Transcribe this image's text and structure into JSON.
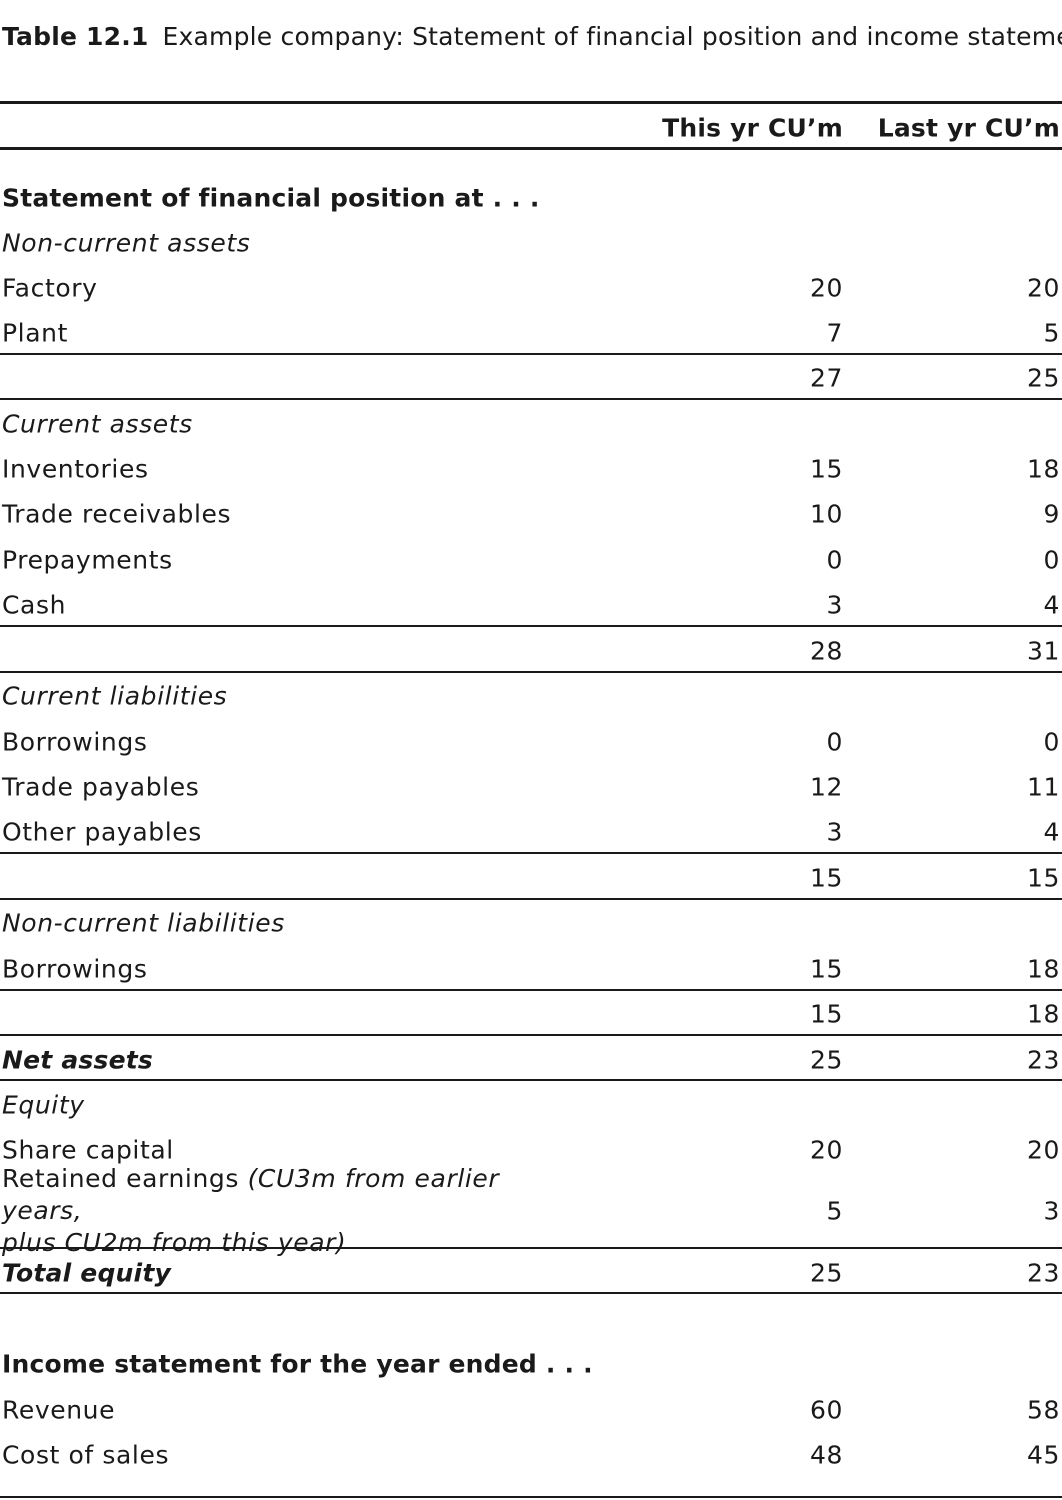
{
  "caption": {
    "label": "Table 12.1",
    "text": "Example company: Statement of financial position and income statement"
  },
  "columns": {
    "this_year": "This yr CU’m",
    "last_year": "Last yr CU’m"
  },
  "financial_position": {
    "heading": "Statement of financial position at . . .",
    "non_current_assets": {
      "heading": "Non-current assets",
      "factory": {
        "label": "Factory",
        "this_year": "20",
        "last_year": "20"
      },
      "plant": {
        "label": "Plant",
        "this_year": "7",
        "last_year": "5"
      },
      "total": {
        "this_year": "27",
        "last_year": "25"
      }
    },
    "current_assets": {
      "heading": "Current assets",
      "inventories": {
        "label": "Inventories",
        "this_year": "15",
        "last_year": "18"
      },
      "trade_receivables": {
        "label": "Trade receivables",
        "this_year": "10",
        "last_year": "9"
      },
      "prepayments": {
        "label": "Prepayments",
        "this_year": "0",
        "last_year": "0"
      },
      "cash": {
        "label": "Cash",
        "this_year": "3",
        "last_year": "4"
      },
      "total": {
        "this_year": "28",
        "last_year": "31"
      }
    },
    "current_liabilities": {
      "heading": "Current liabilities",
      "borrowings": {
        "label": "Borrowings",
        "this_year": "0",
        "last_year": "0"
      },
      "trade_payables": {
        "label": "Trade payables",
        "this_year": "12",
        "last_year": "11"
      },
      "other_payables": {
        "label": "Other payables",
        "this_year": "3",
        "last_year": "4"
      },
      "total": {
        "this_year": "15",
        "last_year": "15"
      }
    },
    "non_current_liabilities": {
      "heading": "Non-current liabilities",
      "borrowings": {
        "label": "Borrowings",
        "this_year": "15",
        "last_year": "18"
      },
      "total": {
        "this_year": "15",
        "last_year": "18"
      }
    },
    "net_assets": {
      "label": "Net assets",
      "this_year": "25",
      "last_year": "23"
    },
    "equity": {
      "heading": "Equity",
      "share_capital": {
        "label": "Share capital",
        "this_year": "20",
        "last_year": "20"
      },
      "retained_earnings": {
        "label": "Retained earnings",
        "note_line1": "(CU3m from earlier years,",
        "note_line2": "plus CU2m from this year)",
        "this_year": "5",
        "last_year": "3"
      },
      "total": {
        "label": "Total equity",
        "this_year": "25",
        "last_year": "23"
      }
    }
  },
  "income_statement": {
    "heading": "Income statement for the year ended . . .",
    "revenue": {
      "label": "Revenue",
      "this_year": "60",
      "last_year": "58"
    },
    "cost_of_sales": {
      "label": "Cost of sales",
      "this_year": "48",
      "last_year": "45"
    }
  }
}
